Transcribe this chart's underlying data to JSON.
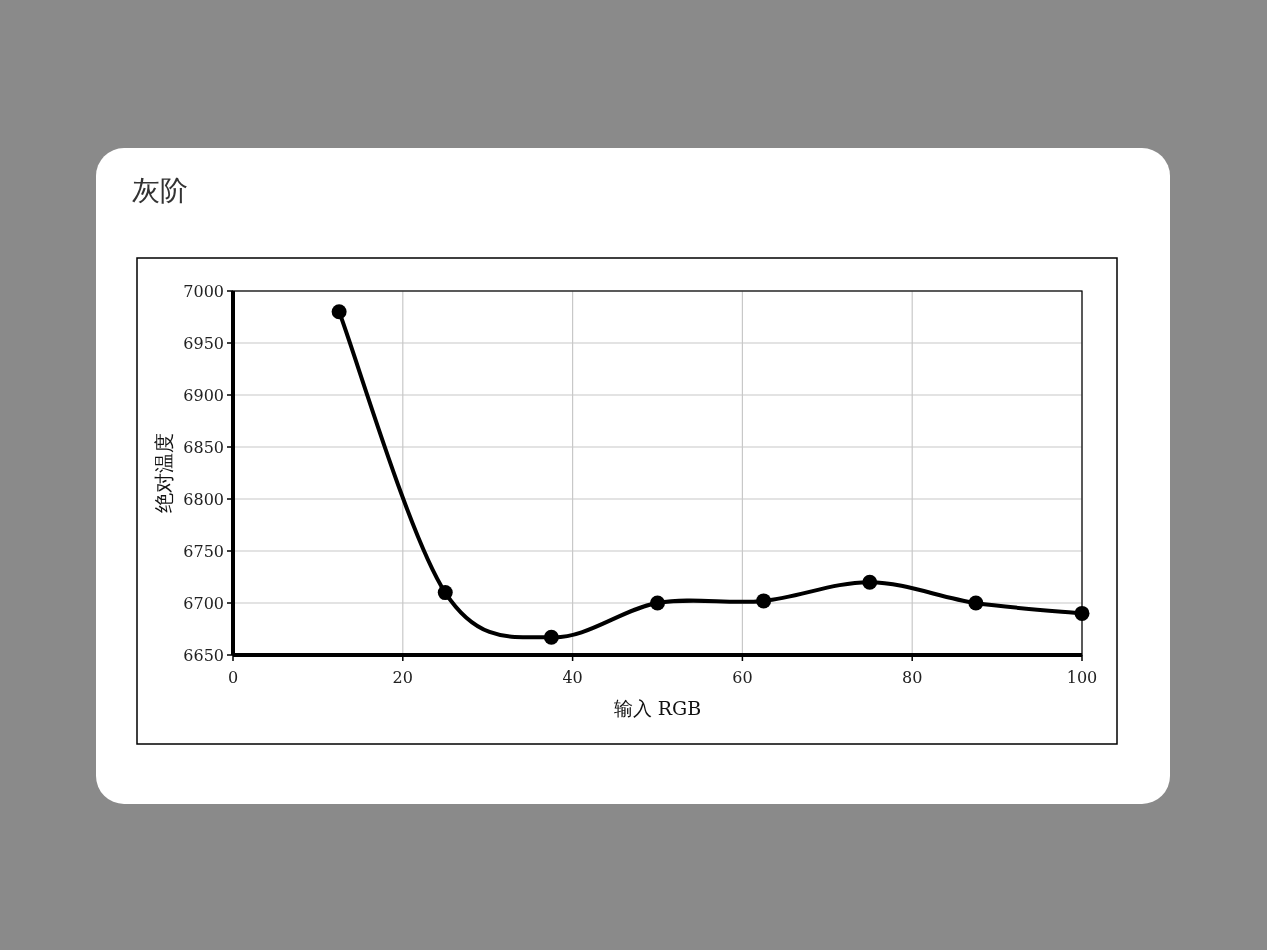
{
  "chart_data": {
    "type": "line",
    "title": "灰阶",
    "xlabel": "输入 RGB",
    "ylabel": "绝对温度",
    "x": [
      12.5,
      25,
      37.5,
      50,
      62.5,
      75,
      87.5,
      100
    ],
    "values": [
      6980,
      6710,
      6667,
      6700,
      6702,
      6720,
      6700,
      6690
    ],
    "color": "#000000",
    "xlim": [
      0,
      100
    ],
    "ylim": [
      6650,
      7000
    ],
    "xticks": [
      0,
      20,
      40,
      60,
      80,
      100
    ],
    "yticks": [
      6650,
      6700,
      6750,
      6800,
      6850,
      6900,
      6950,
      7000
    ],
    "grid": true,
    "marker": "circle",
    "line_style": "solid"
  }
}
